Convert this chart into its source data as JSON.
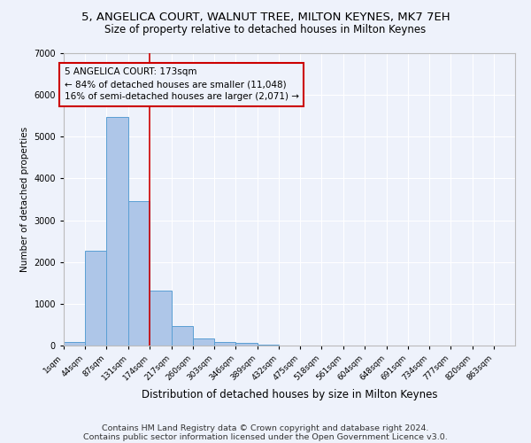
{
  "title1": "5, ANGELICA COURT, WALNUT TREE, MILTON KEYNES, MK7 7EH",
  "title2": "Size of property relative to detached houses in Milton Keynes",
  "xlabel": "Distribution of detached houses by size in Milton Keynes",
  "ylabel": "Number of detached properties",
  "footnote1": "Contains HM Land Registry data © Crown copyright and database right 2024.",
  "footnote2": "Contains public sector information licensed under the Open Government Licence v3.0.",
  "bar_labels": [
    "1sqm",
    "44sqm",
    "87sqm",
    "131sqm",
    "174sqm",
    "217sqm",
    "260sqm",
    "303sqm",
    "346sqm",
    "389sqm",
    "432sqm",
    "475sqm",
    "518sqm",
    "561sqm",
    "604sqm",
    "648sqm",
    "691sqm",
    "734sqm",
    "777sqm",
    "820sqm",
    "863sqm"
  ],
  "bar_edges": [
    1,
    44,
    87,
    131,
    174,
    217,
    260,
    303,
    346,
    389,
    432,
    475,
    518,
    561,
    604,
    648,
    691,
    734,
    777,
    820,
    863,
    906
  ],
  "bar_heights": [
    75,
    2280,
    5480,
    3460,
    1320,
    470,
    160,
    95,
    60,
    30,
    0,
    0,
    0,
    0,
    0,
    0,
    0,
    0,
    0,
    0,
    0
  ],
  "bar_color": "#aec6e8",
  "bar_edgecolor": "#5a9fd4",
  "property_size": 173,
  "vline_color": "#cc0000",
  "annotation_text": "5 ANGELICA COURT: 173sqm\n← 84% of detached houses are smaller (11,048)\n16% of semi-detached houses are larger (2,071) →",
  "annotation_box_color": "#cc0000",
  "ylim": [
    0,
    7000
  ],
  "xlim": [
    1,
    906
  ],
  "background_color": "#eef2fb",
  "grid_color": "#ffffff",
  "title1_fontsize": 9.5,
  "title2_fontsize": 8.5,
  "footnote_fontsize": 6.8,
  "ylabel_fontsize": 7.5,
  "xlabel_fontsize": 8.5,
  "tick_fontsize": 6.5,
  "annot_fontsize": 7.5
}
